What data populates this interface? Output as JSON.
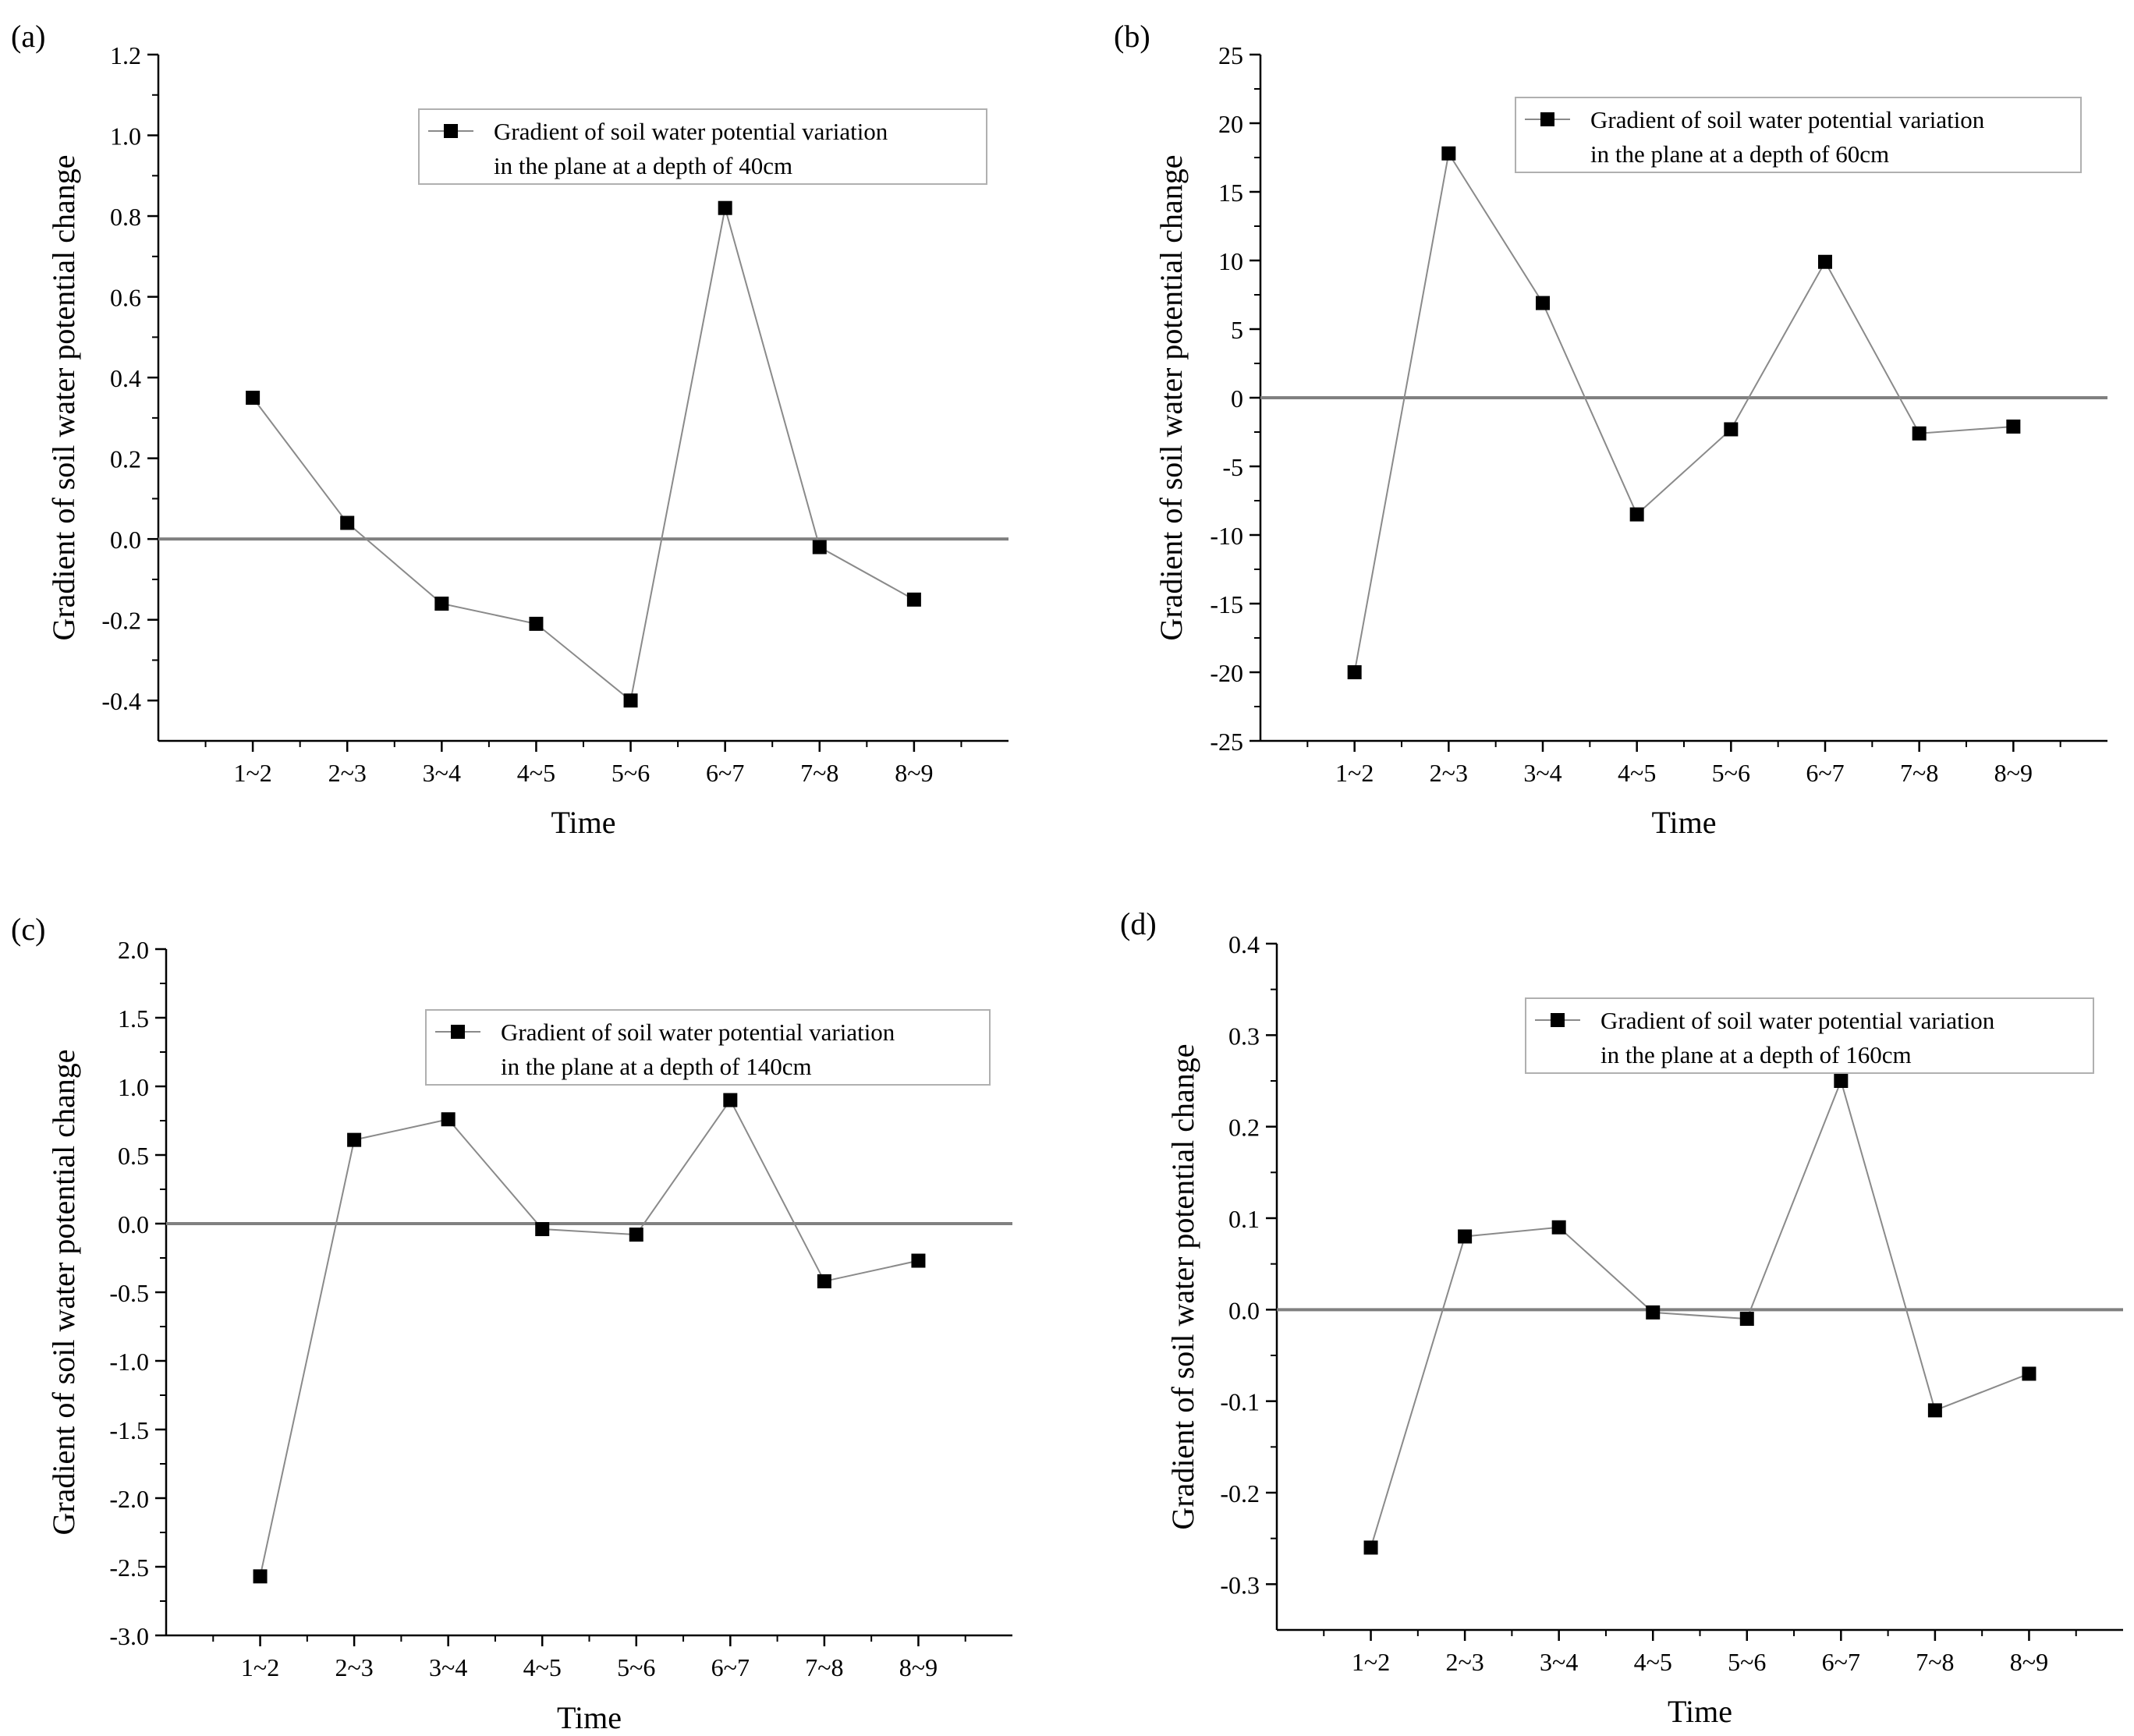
{
  "colors": {
    "axis": "#000000",
    "series": "#8a8a8a",
    "marker": "#000000",
    "zero_line": "#808080",
    "legend_border": "#b0b0b0"
  },
  "chart_data": [
    {
      "type": "line",
      "panel_label": "(a)",
      "categories": [
        "1~2",
        "2~3",
        "3~4",
        "4~5",
        "5~6",
        "6~7",
        "7~8",
        "8~9"
      ],
      "series": [
        {
          "name": "Gradient of soil water potential variation in the plane at a depth of 40cm",
          "values": [
            0.35,
            0.04,
            -0.16,
            -0.21,
            -0.4,
            0.82,
            -0.02,
            -0.15
          ]
        }
      ],
      "legend_lines": [
        "Gradient of soil water potential variation",
        "in the plane at a depth of 40cm"
      ],
      "xlabel": "Time",
      "ylabel": "Gradient of soil water potential change",
      "ylim": [
        -0.5,
        1.2
      ],
      "yticks": [
        -0.4,
        -0.2,
        0.0,
        0.2,
        0.4,
        0.6,
        0.8,
        1.0,
        1.2
      ],
      "ytick_labels": [
        "-0.4",
        "-0.2",
        "0.0",
        "0.2",
        "0.4",
        "0.6",
        "0.8",
        "1.0",
        "1.2"
      ],
      "zero_line": 0,
      "legend_position": "top-right"
    },
    {
      "type": "line",
      "panel_label": "(b)",
      "categories": [
        "1~2",
        "2~3",
        "3~4",
        "4~5",
        "5~6",
        "6~7",
        "7~8",
        "8~9"
      ],
      "series": [
        {
          "name": "Gradient of soil water potential variation in the plane at a depth of 60cm",
          "values": [
            -20,
            17.8,
            6.9,
            -8.5,
            -2.3,
            9.9,
            -2.6,
            -2.1
          ]
        }
      ],
      "legend_lines": [
        "Gradient of soil water potential variation",
        "in the plane at a depth of 60cm"
      ],
      "xlabel": "Time",
      "ylabel": "Gradient of soil water potential change",
      "ylim": [
        -25,
        25
      ],
      "yticks": [
        -25,
        -20,
        -15,
        -10,
        -5,
        0,
        5,
        10,
        15,
        20,
        25
      ],
      "ytick_labels": [
        "-25",
        "-20",
        "-15",
        "-10",
        "-5",
        "0",
        "5",
        "10",
        "15",
        "20",
        "25"
      ],
      "zero_line": 0,
      "legend_position": "top-right"
    },
    {
      "type": "line",
      "panel_label": "(c)",
      "categories": [
        "1~2",
        "2~3",
        "3~4",
        "4~5",
        "5~6",
        "6~7",
        "7~8",
        "8~9"
      ],
      "series": [
        {
          "name": "Gradient of soil water potential variation in the plane at a depth of 140cm",
          "values": [
            -2.57,
            0.61,
            0.76,
            -0.04,
            -0.08,
            0.9,
            -0.42,
            -0.27
          ]
        }
      ],
      "legend_lines": [
        "Gradient of soil water potential variation",
        "in the plane at a depth of 140cm"
      ],
      "xlabel": "Time",
      "ylabel": "Gradient of soil water potential change",
      "ylim": [
        -3.0,
        2.0
      ],
      "yticks": [
        -3.0,
        -2.5,
        -2.0,
        -1.5,
        -1.0,
        -0.5,
        0.0,
        0.5,
        1.0,
        1.5,
        2.0
      ],
      "ytick_labels": [
        "-3.0",
        "-2.5",
        "-2.0",
        "-1.5",
        "-1.0",
        "-0.5",
        "0.0",
        "0.5",
        "1.0",
        "1.5",
        "2.0"
      ],
      "zero_line": 0,
      "legend_position": "top-right"
    },
    {
      "type": "line",
      "panel_label": "(d)",
      "categories": [
        "1~2",
        "2~3",
        "3~4",
        "4~5",
        "5~6",
        "6~7",
        "7~8",
        "8~9"
      ],
      "series": [
        {
          "name": "Gradient of soil water potential variation in the plane at a depth of 160cm",
          "values": [
            -0.26,
            0.08,
            0.09,
            -0.003,
            -0.01,
            0.25,
            -0.11,
            -0.07
          ]
        }
      ],
      "legend_lines": [
        "Gradient of soil water potential variation",
        "in the plane at a depth of 160cm"
      ],
      "xlabel": "Time",
      "ylabel": "Gradient of soil water potential change",
      "ylim": [
        -0.35,
        0.4
      ],
      "yticks": [
        -0.3,
        -0.2,
        -0.1,
        0.0,
        0.1,
        0.2,
        0.3,
        0.4
      ],
      "ytick_labels": [
        "-0.3",
        "-0.2",
        "-0.1",
        "0.0",
        "0.1",
        "0.2",
        "0.3",
        "0.4"
      ],
      "zero_line": 0,
      "legend_position": "top-right"
    }
  ]
}
